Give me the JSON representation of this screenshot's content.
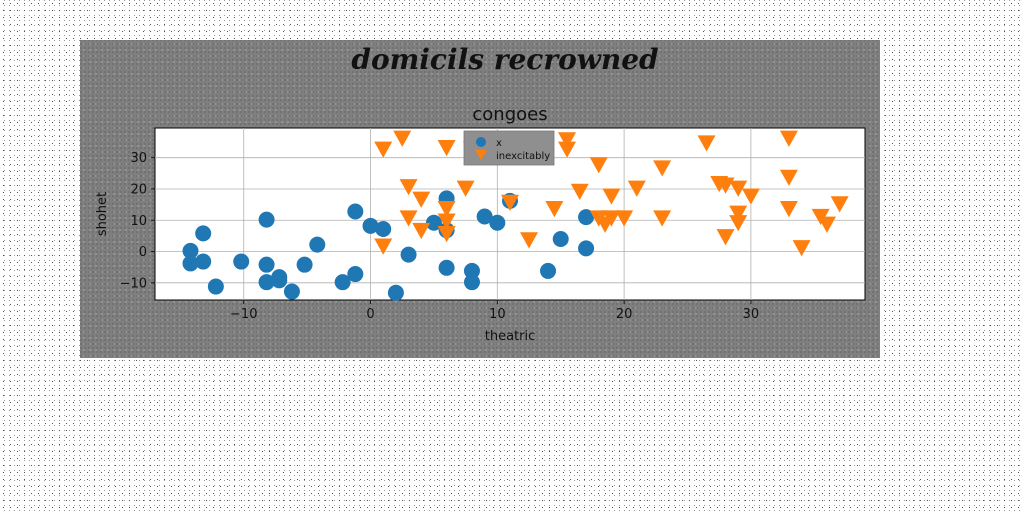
{
  "suptitle": "domicils recrowned",
  "chart_data": {
    "type": "scatter",
    "title": "congoes",
    "xlabel": "theatric",
    "ylabel": "shohet",
    "xlim": [
      -17,
      39
    ],
    "ylim": [
      -15.5,
      39.5
    ],
    "xticks": [
      -10,
      0,
      10,
      20,
      30
    ],
    "yticks": [
      -10,
      0,
      10,
      20,
      30
    ],
    "xtick_labels": [
      "−10",
      "0",
      "10",
      "20",
      "30"
    ],
    "ytick_labels": [
      "−10",
      "0",
      "10",
      "20",
      "30"
    ],
    "grid": true,
    "legend_position": "top-center",
    "series": [
      {
        "name": "x",
        "marker": "circle",
        "color": "#1f77b4",
        "points": [
          [
            -14.2,
            0.2
          ],
          [
            -14.2,
            -3.8
          ],
          [
            -13.2,
            5.8
          ],
          [
            -13.2,
            -3.2
          ],
          [
            -12.2,
            -11.2
          ],
          [
            -10.2,
            -3.2
          ],
          [
            -8.2,
            10.2
          ],
          [
            -8.2,
            -4.2
          ],
          [
            -8.2,
            -9.8
          ],
          [
            -7.2,
            -8.2
          ],
          [
            -7.2,
            -9.2
          ],
          [
            -6.2,
            -12.8
          ],
          [
            -5.2,
            -4.2
          ],
          [
            -4.2,
            2.2
          ],
          [
            -2.2,
            -9.8
          ],
          [
            -1.2,
            12.8
          ],
          [
            -1.2,
            -7.2
          ],
          [
            0.0,
            8.2
          ],
          [
            1.0,
            7.2
          ],
          [
            2.0,
            -13.2
          ],
          [
            3.0,
            -1.0
          ],
          [
            5.0,
            9.2
          ],
          [
            6.0,
            17.0
          ],
          [
            6.0,
            6.8
          ],
          [
            6.0,
            -5.2
          ],
          [
            8.0,
            -6.2
          ],
          [
            8.0,
            -9.8
          ],
          [
            9.0,
            11.2
          ],
          [
            10.0,
            9.2
          ],
          [
            11.0,
            16.2
          ],
          [
            14.0,
            -6.2
          ],
          [
            15.0,
            4.0
          ],
          [
            17.0,
            11.0
          ],
          [
            17.0,
            1.0
          ]
        ]
      },
      {
        "name": "inexcitably",
        "marker": "triangle-down",
        "color": "#ff7f0e",
        "points": [
          [
            1.0,
            33.0
          ],
          [
            1.0,
            2.0
          ],
          [
            2.5,
            36.5
          ],
          [
            3.0,
            21.0
          ],
          [
            3.0,
            11.0
          ],
          [
            4.0,
            17.0
          ],
          [
            4.0,
            7.0
          ],
          [
            6.0,
            33.5
          ],
          [
            6.0,
            14.0
          ],
          [
            6.0,
            10.0
          ],
          [
            6.0,
            6.0
          ],
          [
            7.5,
            20.5
          ],
          [
            8.0,
            33.0
          ],
          [
            11.0,
            16.0
          ],
          [
            12.5,
            4.0
          ],
          [
            14.5,
            14.0
          ],
          [
            15.5,
            36.0
          ],
          [
            15.5,
            33.0
          ],
          [
            16.5,
            19.5
          ],
          [
            18.0,
            28.0
          ],
          [
            18.0,
            11.0
          ],
          [
            18.5,
            9.0
          ],
          [
            19.0,
            11.0
          ],
          [
            19.0,
            18.0
          ],
          [
            20.0,
            11.0
          ],
          [
            21.0,
            20.5
          ],
          [
            23.0,
            27.0
          ],
          [
            23.0,
            11.0
          ],
          [
            26.5,
            35.0
          ],
          [
            27.5,
            22.0
          ],
          [
            28.0,
            21.5
          ],
          [
            28.0,
            5.0
          ],
          [
            29.0,
            20.5
          ],
          [
            29.0,
            12.5
          ],
          [
            29.0,
            9.5
          ],
          [
            30.0,
            18.0
          ],
          [
            33.0,
            36.5
          ],
          [
            33.0,
            24.0
          ],
          [
            33.0,
            14.0
          ],
          [
            34.0,
            1.5
          ],
          [
            35.5,
            11.5
          ],
          [
            36.0,
            9.0
          ],
          [
            37.0,
            15.5
          ]
        ]
      }
    ]
  }
}
